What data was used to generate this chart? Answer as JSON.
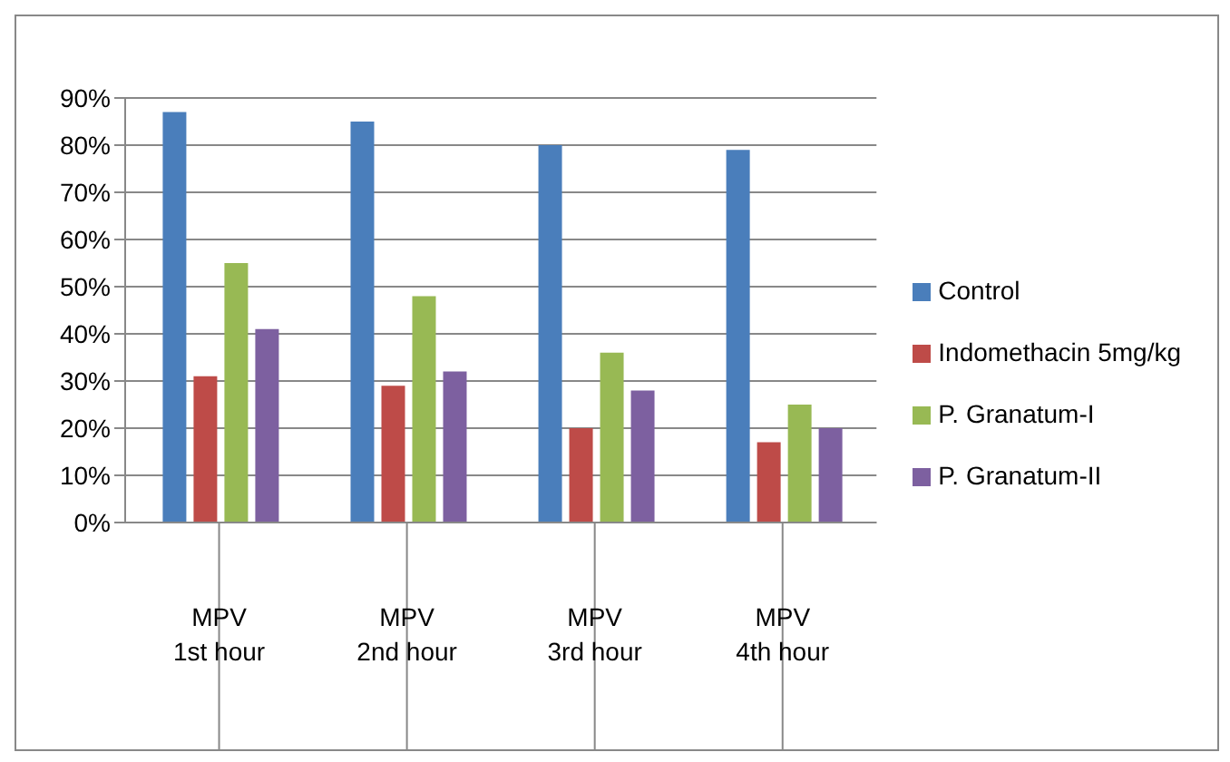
{
  "chart_data": {
    "type": "bar",
    "categories": [
      "MPV 1st hour",
      "MPV 2nd hour",
      "MPV 3rd hour",
      "MPV 4th hour"
    ],
    "series": [
      {
        "name": "Control",
        "color": "#4a7ebb",
        "values": [
          87,
          85,
          80,
          79
        ]
      },
      {
        "name": "Indomethacin 5mg/kg",
        "color": "#be4b48",
        "values": [
          31,
          29,
          20,
          17
        ]
      },
      {
        "name": "P. Granatum-I",
        "color": "#98b954",
        "values": [
          55,
          48,
          36,
          25
        ]
      },
      {
        "name": "P. Granatum-II",
        "color": "#7d60a0",
        "values": [
          41,
          32,
          28,
          20
        ]
      }
    ],
    "ylim": [
      0,
      90
    ],
    "yticks": [
      {
        "value": 0,
        "label": "0%"
      },
      {
        "value": 10,
        "label": "10%"
      },
      {
        "value": 20,
        "label": "20%"
      },
      {
        "value": 30,
        "label": "30%"
      },
      {
        "value": 40,
        "label": "40%"
      },
      {
        "value": 50,
        "label": "50%"
      },
      {
        "value": 60,
        "label": "60%"
      },
      {
        "value": 70,
        "label": "70%"
      },
      {
        "value": 80,
        "label": "80%"
      },
      {
        "value": 90,
        "label": "90%"
      }
    ],
    "grid": "y",
    "legend": "right"
  }
}
